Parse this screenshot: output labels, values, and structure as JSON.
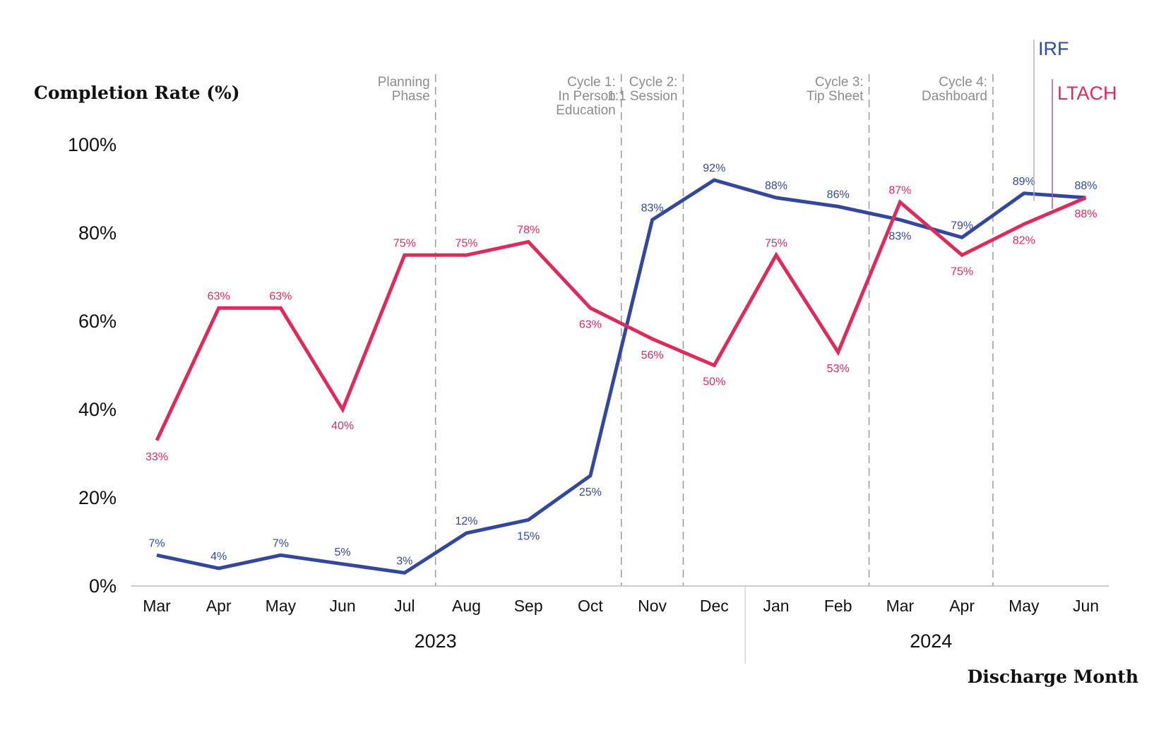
{
  "chart_data": {
    "type": "line",
    "ylabel": "Completion Rate (%)",
    "xlabel": "Discharge Month",
    "ylim": [
      0,
      100
    ],
    "yticks": [
      "0%",
      "20%",
      "40%",
      "60%",
      "80%",
      "100%"
    ],
    "ytick_values": [
      0,
      20,
      40,
      60,
      80,
      100
    ],
    "categories": [
      "Mar",
      "Apr",
      "May",
      "Jun",
      "Jul",
      "Aug",
      "Sep",
      "Oct",
      "Nov",
      "Dec",
      "Jan",
      "Feb",
      "Mar",
      "Apr",
      "May",
      "Jun"
    ],
    "years": [
      {
        "label": "2023",
        "start_index": 0,
        "end_index": 9
      },
      {
        "label": "2024",
        "start_index": 10,
        "end_index": 15
      }
    ],
    "grid": false,
    "series": [
      {
        "name": "IRF",
        "color": "#33489a",
        "values": [
          7,
          4,
          7,
          5,
          3,
          12,
          15,
          25,
          83,
          92,
          88,
          86,
          83,
          79,
          89,
          88
        ],
        "labels": [
          "7%",
          "4%",
          "7%",
          "5%",
          "3%",
          "12%",
          "15%",
          "25%",
          "83%",
          "92%",
          "88%",
          "86%",
          "83%",
          "79%",
          "89%",
          "88%"
        ]
      },
      {
        "name": "LTACH",
        "color": "#dd2b5b",
        "values": [
          33,
          63,
          63,
          40,
          75,
          75,
          78,
          63,
          56,
          50,
          75,
          53,
          87,
          75,
          82,
          88
        ],
        "labels": [
          "33%",
          "63%",
          "63%",
          "40%",
          "75%",
          "75%",
          "78%",
          "63%",
          "56%",
          "50%",
          "75%",
          "53%",
          "87%",
          "75%",
          "82%",
          "88%"
        ]
      }
    ],
    "phases": [
      {
        "lines": [
          "Planning",
          "Phase"
        ],
        "after_index": 4
      },
      {
        "lines": [
          "Cycle 1:",
          "In Person",
          "Education"
        ],
        "after_index": 7
      },
      {
        "lines": [
          "Cycle 2:",
          "1:1 Session"
        ],
        "after_index": 8
      },
      {
        "lines": [
          "Cycle 3:",
          "Tip Sheet"
        ],
        "after_index": 11
      },
      {
        "lines": [
          "Cycle 4:",
          "Dashboard"
        ],
        "after_index": 13
      }
    ]
  }
}
